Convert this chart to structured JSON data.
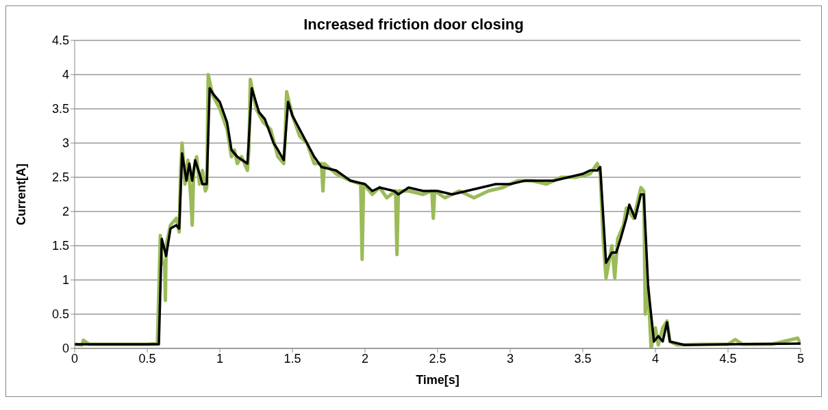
{
  "chart_data": {
    "type": "line",
    "title": "Increased friction door closing",
    "xlabel": "Time[s]",
    "ylabel": "Current[A]",
    "xlim": [
      0,
      5
    ],
    "xticks": [
      0,
      0.5,
      1,
      1.5,
      2,
      2.5,
      3,
      3.5,
      4,
      4.5,
      5
    ],
    "ylim": [
      0,
      4.5
    ],
    "yticks": [
      0,
      0.5,
      1,
      1.5,
      2,
      2.5,
      3,
      3.5,
      4,
      4.5
    ],
    "grid": "y",
    "marker": "none",
    "line_style": "solid",
    "legend": false,
    "series": [
      {
        "color": "#9bbb59",
        "x": [
          0,
          0.05,
          0.06,
          0.1,
          0.3,
          0.5,
          0.57,
          0.59,
          0.6,
          0.62,
          0.625,
          0.63,
          0.66,
          0.7,
          0.72,
          0.73,
          0.74,
          0.76,
          0.78,
          0.8,
          0.81,
          0.82,
          0.84,
          0.86,
          0.88,
          0.9,
          0.91,
          0.92,
          0.95,
          1.0,
          1.05,
          1.08,
          1.1,
          1.12,
          1.15,
          1.19,
          1.2,
          1.21,
          1.25,
          1.3,
          1.35,
          1.4,
          1.44,
          1.45,
          1.46,
          1.5,
          1.55,
          1.6,
          1.65,
          1.7,
          1.71,
          1.72,
          1.8,
          1.9,
          1.97,
          1.98,
          1.99,
          2.05,
          2.1,
          2.15,
          2.21,
          2.22,
          2.23,
          2.3,
          2.4,
          2.46,
          2.47,
          2.48,
          2.55,
          2.65,
          2.75,
          2.85,
          2.95,
          3.05,
          3.15,
          3.25,
          3.35,
          3.45,
          3.55,
          3.6,
          3.62,
          3.64,
          3.66,
          3.7,
          3.72,
          3.74,
          3.78,
          3.8,
          3.85,
          3.9,
          3.92,
          3.93,
          3.95,
          3.97,
          4.0,
          4.02,
          4.05,
          4.08,
          4.1,
          4.15,
          4.3,
          4.5,
          4.55,
          4.6,
          4.8,
          4.98,
          5.0
        ],
        "values": [
          0.06,
          0.05,
          0.12,
          0.06,
          0.06,
          0.06,
          0.07,
          1.65,
          1.3,
          1.2,
          0.7,
          1.5,
          1.8,
          1.9,
          1.7,
          2.6,
          3.0,
          2.4,
          2.75,
          2.2,
          1.8,
          2.6,
          2.8,
          2.4,
          2.6,
          2.3,
          2.35,
          4.0,
          3.7,
          3.5,
          3.2,
          2.8,
          2.9,
          2.7,
          2.8,
          2.6,
          2.9,
          3.93,
          3.5,
          3.3,
          3.2,
          2.8,
          2.7,
          3.1,
          3.75,
          3.4,
          3.1,
          3.0,
          2.7,
          2.7,
          2.3,
          2.7,
          2.55,
          2.45,
          2.4,
          1.3,
          2.4,
          2.25,
          2.35,
          2.2,
          2.3,
          1.37,
          2.3,
          2.3,
          2.25,
          2.3,
          1.9,
          2.3,
          2.2,
          2.3,
          2.2,
          2.3,
          2.35,
          2.45,
          2.45,
          2.4,
          2.5,
          2.5,
          2.55,
          2.7,
          2.55,
          1.6,
          1.03,
          1.5,
          1.03,
          1.6,
          1.8,
          2.05,
          1.9,
          2.35,
          2.3,
          0.5,
          0.9,
          0.0,
          0.3,
          0.05,
          0.3,
          0.4,
          0.1,
          0.05,
          0.06,
          0.06,
          0.13,
          0.06,
          0.06,
          0.15,
          0.06
        ]
      },
      {
        "color": "#000000",
        "x": [
          0,
          0.3,
          0.55,
          0.58,
          0.6,
          0.63,
          0.66,
          0.7,
          0.72,
          0.74,
          0.77,
          0.79,
          0.81,
          0.83,
          0.86,
          0.88,
          0.91,
          0.93,
          0.96,
          1.0,
          1.05,
          1.08,
          1.12,
          1.19,
          1.22,
          1.27,
          1.31,
          1.37,
          1.4,
          1.44,
          1.47,
          1.5,
          1.55,
          1.6,
          1.65,
          1.7,
          1.8,
          1.9,
          2.0,
          2.05,
          2.1,
          2.2,
          2.23,
          2.3,
          2.4,
          2.5,
          2.6,
          2.7,
          2.8,
          2.9,
          3.0,
          3.1,
          3.2,
          3.3,
          3.4,
          3.5,
          3.55,
          3.6,
          3.62,
          3.66,
          3.7,
          3.73,
          3.76,
          3.8,
          3.82,
          3.86,
          3.9,
          3.92,
          3.95,
          3.97,
          3.99,
          4.02,
          4.05,
          4.08,
          4.1,
          4.2,
          4.5,
          5.0
        ],
        "values": [
          0.06,
          0.06,
          0.06,
          0.06,
          1.6,
          1.35,
          1.75,
          1.8,
          1.75,
          2.85,
          2.45,
          2.7,
          2.45,
          2.75,
          2.55,
          2.4,
          2.4,
          3.8,
          3.7,
          3.6,
          3.3,
          2.9,
          2.8,
          2.7,
          3.8,
          3.45,
          3.35,
          3.0,
          2.9,
          2.75,
          3.6,
          3.4,
          3.2,
          3.0,
          2.8,
          2.65,
          2.6,
          2.45,
          2.4,
          2.3,
          2.35,
          2.3,
          2.25,
          2.35,
          2.3,
          2.3,
          2.25,
          2.3,
          2.35,
          2.4,
          2.4,
          2.45,
          2.45,
          2.45,
          2.5,
          2.55,
          2.6,
          2.6,
          2.65,
          1.25,
          1.4,
          1.4,
          1.6,
          1.9,
          2.1,
          1.9,
          2.25,
          2.25,
          0.9,
          0.5,
          0.1,
          0.18,
          0.1,
          0.38,
          0.1,
          0.05,
          0.06,
          0.07
        ]
      }
    ]
  }
}
